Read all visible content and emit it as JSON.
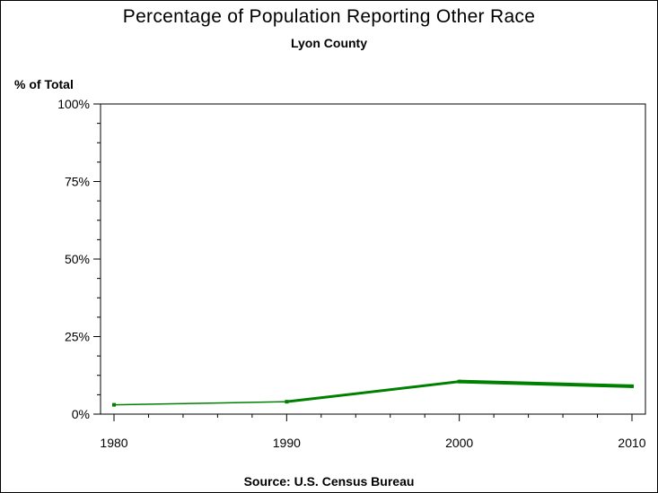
{
  "chart_data": {
    "type": "line",
    "title": "Percentage of Population Reporting Other Race",
    "subtitle": "Lyon County",
    "ylabel": "% of Total",
    "xlabel": "",
    "footnote": "Source: U.S. Census Bureau",
    "x": [
      1980,
      1990,
      2000,
      2010
    ],
    "x_tick_labels": [
      "1980",
      "1990",
      "2000",
      "2010"
    ],
    "xlim": [
      1980,
      2010
    ],
    "ylim": [
      0,
      100
    ],
    "y_ticks": [
      0,
      25,
      50,
      75,
      100
    ],
    "y_tick_labels": [
      "0%",
      "25%",
      "50%",
      "75%",
      "100%"
    ],
    "grid": false,
    "series": [
      {
        "color": "#008000",
        "values": [
          3.0,
          4.0,
          10.5,
          9.0
        ]
      }
    ]
  }
}
